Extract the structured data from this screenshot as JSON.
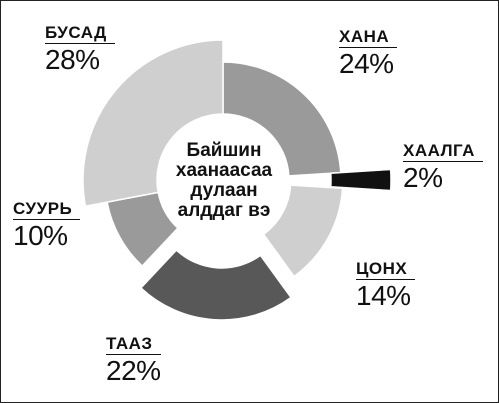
{
  "chart_data": {
    "type": "pie",
    "title": "Байшин хаанаасаа дулаан алддаг вэ",
    "title_lines": [
      "Байшин",
      "хаанаасаа",
      "дулаан",
      "алддаг вэ"
    ],
    "slices": [
      {
        "label": "ХАНА",
        "value": 24,
        "value_label": "24%",
        "color": "#9a9a9a"
      },
      {
        "label": "ХААЛГА",
        "value": 2,
        "value_label": "2%",
        "color": "#111111"
      },
      {
        "label": "ЦОНХ",
        "value": 14,
        "value_label": "14%",
        "color": "#cfcfcf"
      },
      {
        "label": "ТААЗ",
        "value": 22,
        "value_label": "22%",
        "color": "#585858"
      },
      {
        "label": "СУУРЬ",
        "value": 10,
        "value_label": "10%",
        "color": "#9a9a9a"
      },
      {
        "label": "БУСАД",
        "value": 28,
        "value_label": "28%",
        "color": "#cfcfcf"
      }
    ]
  }
}
